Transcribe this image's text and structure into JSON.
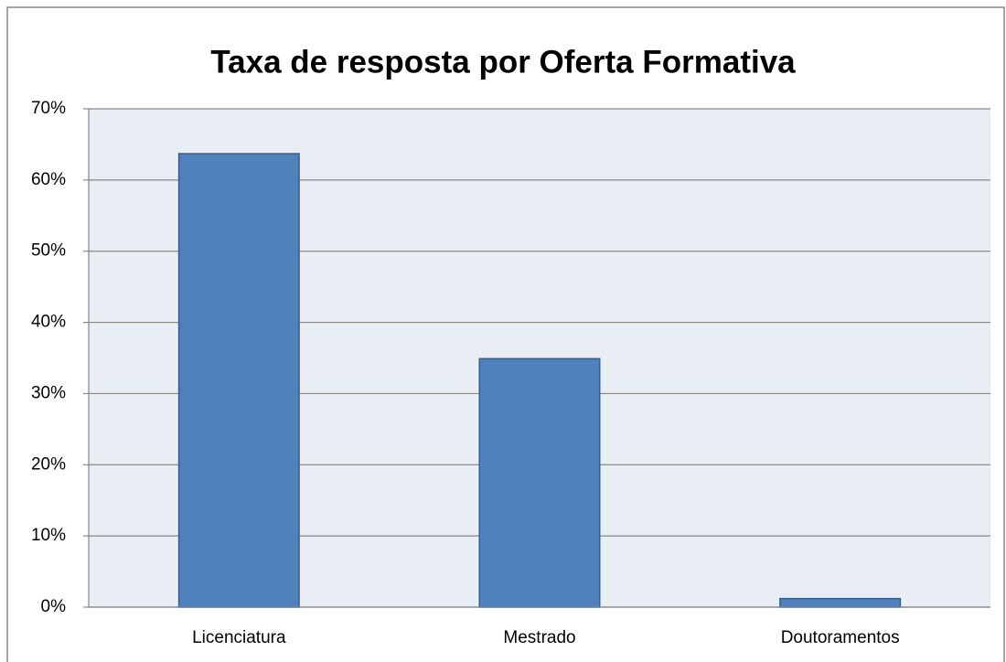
{
  "chart_data": {
    "type": "bar",
    "title": "Taxa de resposta por Oferta Formativa",
    "categories": [
      "Licenciatura",
      "Mestrado",
      "Doutoramentos"
    ],
    "values": [
      63.7,
      34.9,
      1.2
    ],
    "color": "#4f81bd",
    "ylim": [
      0,
      70
    ],
    "yticks": [
      {
        "value": 0,
        "label": "0%"
      },
      {
        "value": 10,
        "label": "10%"
      },
      {
        "value": 20,
        "label": "20%"
      },
      {
        "value": 30,
        "label": "30%"
      },
      {
        "value": 40,
        "label": "40%"
      },
      {
        "value": 50,
        "label": "50%"
      },
      {
        "value": 60,
        "label": "60%"
      },
      {
        "value": 70,
        "label": "70%"
      }
    ],
    "grid": true
  }
}
